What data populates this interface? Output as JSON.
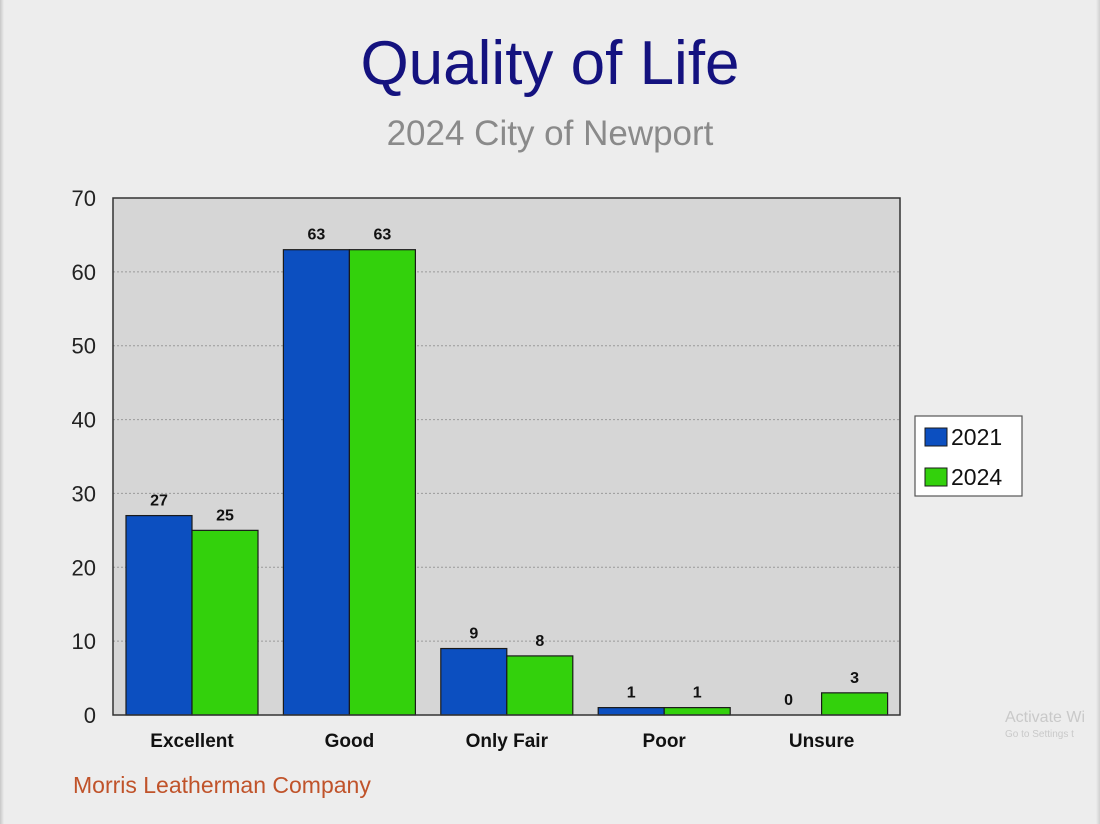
{
  "header": {
    "title": "Quality of Life",
    "subtitle": "2024 City of Newport"
  },
  "footer": {
    "credit": "Morris Leatherman Company"
  },
  "watermark": {
    "line1": "Activate Wi",
    "line2": "Go to Settings t"
  },
  "colors": {
    "series_2021": "#0c4fc0",
    "series_2024": "#33d10c",
    "plot_background": "#d6d6d6",
    "title": "#14127f",
    "subtitle": "#8a8a8a",
    "credit": "#c0532a"
  },
  "chart_data": {
    "type": "bar",
    "title": "Quality of Life",
    "subtitle": "2024 City of Newport",
    "categories": [
      "Excellent",
      "Good",
      "Only Fair",
      "Poor",
      "Unsure"
    ],
    "series": [
      {
        "name": "2021",
        "values": [
          27,
          63,
          9,
          1,
          0
        ]
      },
      {
        "name": "2024",
        "values": [
          25,
          63,
          8,
          1,
          3
        ]
      }
    ],
    "xlabel": "",
    "ylabel": "",
    "ylim": [
      0,
      70
    ],
    "yticks": [
      0,
      10,
      20,
      30,
      40,
      50,
      60,
      70
    ],
    "grid": true,
    "legend": "right",
    "data_labels": true
  }
}
